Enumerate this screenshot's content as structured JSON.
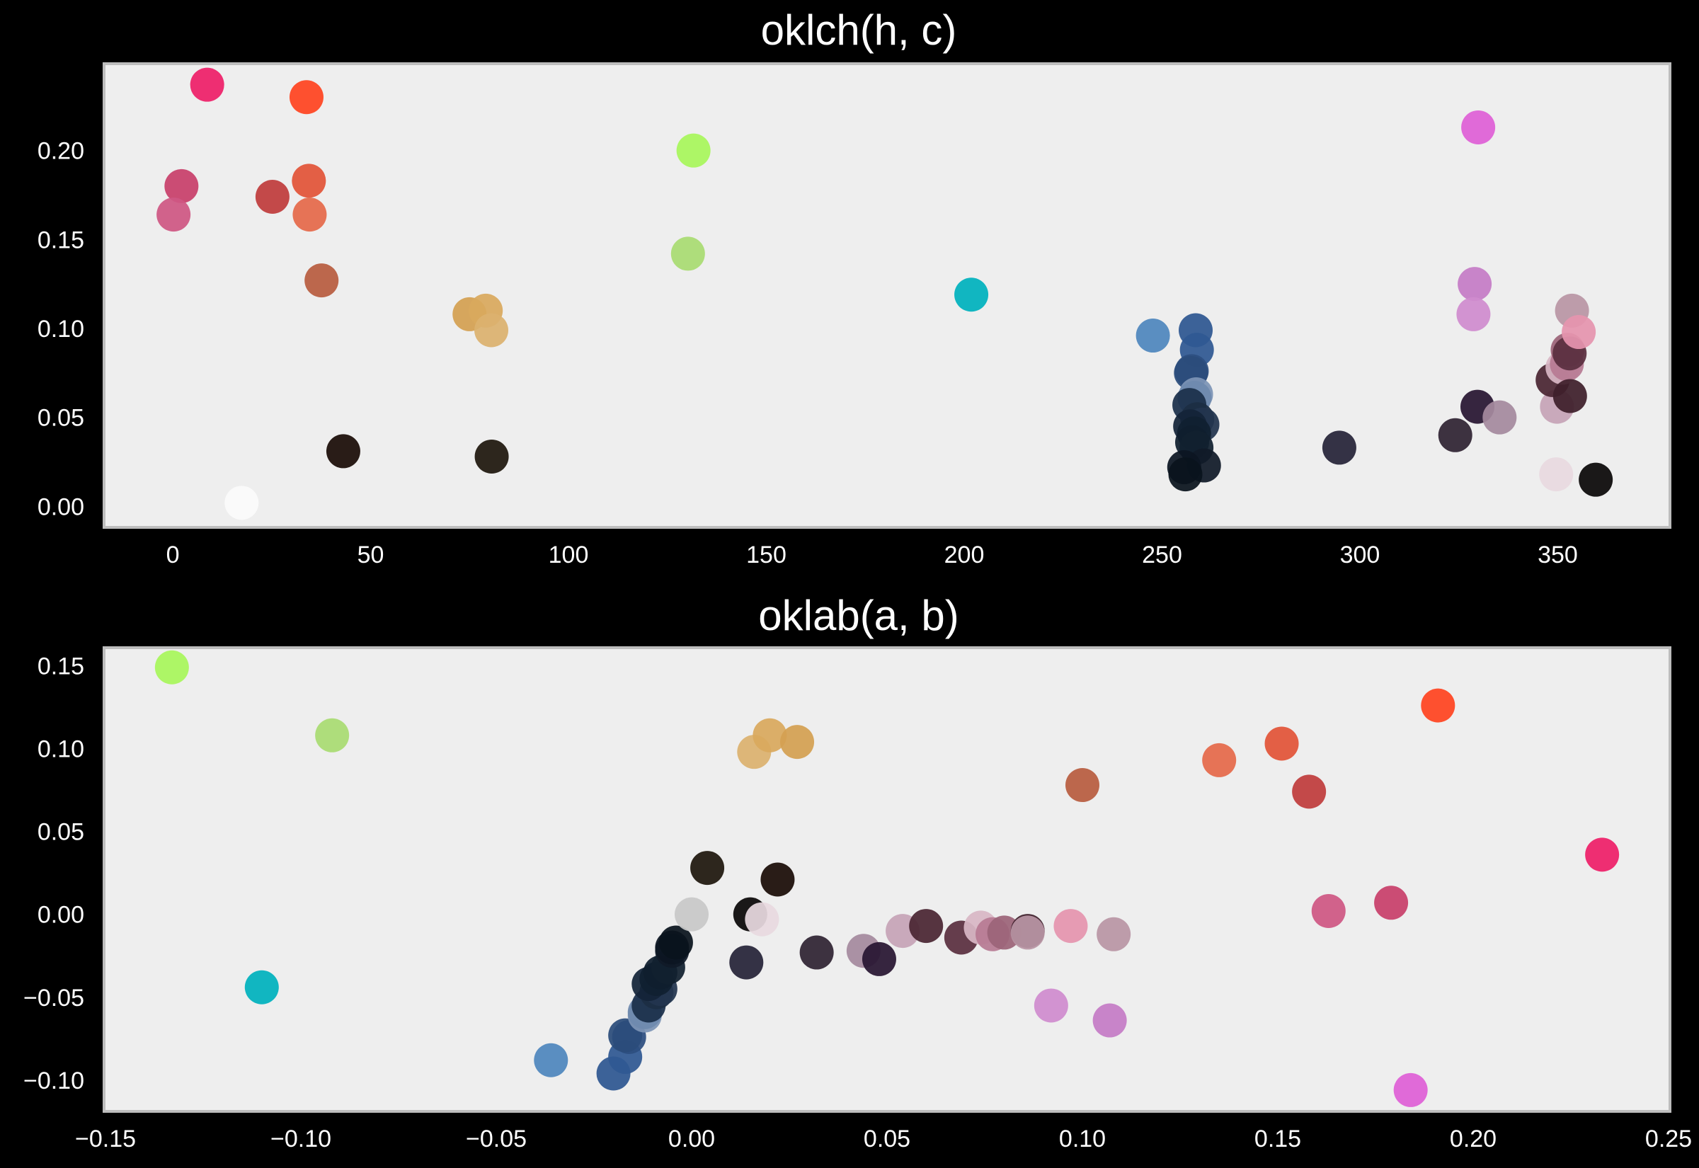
{
  "chart_data": [
    {
      "type": "scatter",
      "title": "oklch(h, c)",
      "xlim": [
        -17,
        378
      ],
      "ylim": [
        -0.011,
        0.248
      ],
      "xticks": [
        0,
        50,
        100,
        150,
        200,
        250,
        300,
        350
      ],
      "yticks": [
        0.0,
        0.05,
        0.1,
        0.15,
        0.2
      ],
      "xtick_labels": [
        "0",
        "50",
        "100",
        "150",
        "200",
        "250",
        "300",
        "350"
      ],
      "ytick_labels": [
        "0.00",
        "0.05",
        "0.10",
        "0.15",
        "0.20"
      ],
      "grid": false,
      "points": [
        {
          "x": 8.7,
          "y": 0.237,
          "color": "#ee1f68"
        },
        {
          "x": 33.8,
          "y": 0.23,
          "color": "#ff4420"
        },
        {
          "x": 2.2,
          "y": 0.18,
          "color": "#c8406a"
        },
        {
          "x": 0.2,
          "y": 0.164,
          "color": "#cf5783"
        },
        {
          "x": 25.2,
          "y": 0.174,
          "color": "#c03c3c"
        },
        {
          "x": 34.4,
          "y": 0.183,
          "color": "#e25438"
        },
        {
          "x": 34.6,
          "y": 0.164,
          "color": "#e5694a"
        },
        {
          "x": 37.6,
          "y": 0.127,
          "color": "#b85c3f"
        },
        {
          "x": 43.1,
          "y": 0.031,
          "color": "#1a0c06"
        },
        {
          "x": 17.4,
          "y": 0.002,
          "color": "#fbfbfb"
        },
        {
          "x": 75.0,
          "y": 0.108,
          "color": "#d4a052"
        },
        {
          "x": 79.1,
          "y": 0.11,
          "color": "#d9a95e"
        },
        {
          "x": 80.5,
          "y": 0.099,
          "color": "#dbb26f"
        },
        {
          "x": 80.6,
          "y": 0.028,
          "color": "#1e170d"
        },
        {
          "x": 131.6,
          "y": 0.2,
          "color": "#a8f65b"
        },
        {
          "x": 130.2,
          "y": 0.142,
          "color": "#a9db72"
        },
        {
          "x": 201.8,
          "y": 0.119,
          "color": "#00b2bd"
        },
        {
          "x": 247.7,
          "y": 0.096,
          "color": "#4f86bd"
        },
        {
          "x": 258.5,
          "y": 0.099,
          "color": "#2e5791"
        },
        {
          "x": 258.8,
          "y": 0.088,
          "color": "#2f5892"
        },
        {
          "x": 257.5,
          "y": 0.076,
          "color": "#2d4f80"
        },
        {
          "x": 257.3,
          "y": 0.075,
          "color": "#2b4c7b"
        },
        {
          "x": 258.6,
          "y": 0.063,
          "color": "#7d95b6"
        },
        {
          "x": 258.2,
          "y": 0.061,
          "color": "#6f8aae"
        },
        {
          "x": 256.9,
          "y": 0.057,
          "color": "#1b2f4a"
        },
        {
          "x": 258.9,
          "y": 0.049,
          "color": "#1c2d43"
        },
        {
          "x": 260.2,
          "y": 0.046,
          "color": "#22354f"
        },
        {
          "x": 257.1,
          "y": 0.045,
          "color": "#132438"
        },
        {
          "x": 258.1,
          "y": 0.041,
          "color": "#102030"
        },
        {
          "x": 257.6,
          "y": 0.036,
          "color": "#0f1e2e"
        },
        {
          "x": 258.7,
          "y": 0.033,
          "color": "#11202f"
        },
        {
          "x": 260.6,
          "y": 0.023,
          "color": "#101a28"
        },
        {
          "x": 255.6,
          "y": 0.022,
          "color": "#0c1622"
        },
        {
          "x": 255.9,
          "y": 0.018,
          "color": "#0a131d"
        },
        {
          "x": 294.8,
          "y": 0.033,
          "color": "#262438"
        },
        {
          "x": 324.1,
          "y": 0.04,
          "color": "#2f2333"
        },
        {
          "x": 329.9,
          "y": 0.213,
          "color": "#df60d6"
        },
        {
          "x": 329.0,
          "y": 0.125,
          "color": "#c57cc6"
        },
        {
          "x": 328.7,
          "y": 0.108,
          "color": "#d08ccf"
        },
        {
          "x": 329.7,
          "y": 0.056,
          "color": "#281531"
        },
        {
          "x": 335.3,
          "y": 0.05,
          "color": "#a58a9e"
        },
        {
          "x": 349.6,
          "y": 0.018,
          "color": "#e8d9e0"
        },
        {
          "x": 349.8,
          "y": 0.056,
          "color": "#c6a4b7"
        },
        {
          "x": 348.7,
          "y": 0.071,
          "color": "#4a2633"
        },
        {
          "x": 351.2,
          "y": 0.078,
          "color": "#d8b7c5"
        },
        {
          "x": 352.3,
          "y": 0.08,
          "color": "#b77b93"
        },
        {
          "x": 352.5,
          "y": 0.088,
          "color": "#9c6478"
        },
        {
          "x": 353.0,
          "y": 0.086,
          "color": "#5a2f3f"
        },
        {
          "x": 353.6,
          "y": 0.11,
          "color": "#b996a5"
        },
        {
          "x": 355.3,
          "y": 0.098,
          "color": "#e594ae"
        },
        {
          "x": 353.1,
          "y": 0.062,
          "color": "#3e1f2b"
        },
        {
          "x": 359.6,
          "y": 0.015,
          "color": "#0a0708"
        }
      ]
    },
    {
      "type": "scatter",
      "title": "oklab(a, b)",
      "xlim": [
        -0.15,
        0.25
      ],
      "ylim": [
        -0.118,
        0.16
      ],
      "xticks": [
        -0.15,
        -0.1,
        -0.05,
        0.0,
        0.05,
        0.1,
        0.15,
        0.2,
        0.25
      ],
      "yticks": [
        -0.1,
        -0.05,
        0.0,
        0.05,
        0.1,
        0.15
      ],
      "xtick_labels": [
        "−0.15",
        "−0.10",
        "−0.05",
        "0.00",
        "0.05",
        "0.10",
        "0.15",
        "0.20",
        "0.25"
      ],
      "ytick_labels": [
        "−0.10",
        "−0.05",
        "0.00",
        "0.05",
        "0.10",
        "0.15"
      ],
      "grid": false,
      "points": [
        {
          "x": -0.133,
          "y": 0.149,
          "color": "#a8f65b"
        },
        {
          "x": -0.092,
          "y": 0.108,
          "color": "#a9db72"
        },
        {
          "x": -0.11,
          "y": -0.044,
          "color": "#00b2bd"
        },
        {
          "x": -0.036,
          "y": -0.088,
          "color": "#4f86bd"
        },
        {
          "x": -0.02,
          "y": -0.096,
          "color": "#2e5791"
        },
        {
          "x": -0.017,
          "y": -0.086,
          "color": "#2f5892"
        },
        {
          "x": -0.016,
          "y": -0.074,
          "color": "#2d4f80"
        },
        {
          "x": -0.017,
          "y": -0.073,
          "color": "#2b4c7b"
        },
        {
          "x": -0.012,
          "y": -0.061,
          "color": "#7d95b6"
        },
        {
          "x": -0.012,
          "y": -0.059,
          "color": "#6f8aae"
        },
        {
          "x": -0.011,
          "y": -0.055,
          "color": "#1b2f4a"
        },
        {
          "x": -0.009,
          "y": -0.047,
          "color": "#1c2d43"
        },
        {
          "x": -0.008,
          "y": -0.045,
          "color": "#22354f"
        },
        {
          "x": -0.011,
          "y": -0.042,
          "color": "#132438"
        },
        {
          "x": -0.009,
          "y": -0.039,
          "color": "#102030"
        },
        {
          "x": -0.008,
          "y": -0.035,
          "color": "#0f1e2e"
        },
        {
          "x": -0.006,
          "y": -0.032,
          "color": "#11202f"
        },
        {
          "x": -0.005,
          "y": -0.022,
          "color": "#101a28"
        },
        {
          "x": -0.005,
          "y": -0.02,
          "color": "#0c1622"
        },
        {
          "x": -0.004,
          "y": -0.017,
          "color": "#0a131d"
        },
        {
          "x": 0.0,
          "y": 0.0,
          "color": "#c8c8c8"
        },
        {
          "x": 0.004,
          "y": 0.028,
          "color": "#1e170d"
        },
        {
          "x": 0.014,
          "y": -0.029,
          "color": "#262438"
        },
        {
          "x": 0.015,
          "y": 0.0,
          "color": "#0a0708"
        },
        {
          "x": 0.018,
          "y": -0.003,
          "color": "#e8d9e0"
        },
        {
          "x": 0.016,
          "y": 0.098,
          "color": "#dbb26f"
        },
        {
          "x": 0.02,
          "y": 0.108,
          "color": "#d9a95e"
        },
        {
          "x": 0.027,
          "y": 0.104,
          "color": "#d4a052"
        },
        {
          "x": 0.022,
          "y": 0.021,
          "color": "#1a0c06"
        },
        {
          "x": 0.032,
          "y": -0.023,
          "color": "#2f2333"
        },
        {
          "x": 0.044,
          "y": -0.022,
          "color": "#a58a9e"
        },
        {
          "x": 0.048,
          "y": -0.027,
          "color": "#281531"
        },
        {
          "x": 0.054,
          "y": -0.01,
          "color": "#c6a4b7"
        },
        {
          "x": 0.06,
          "y": -0.007,
          "color": "#4a2633"
        },
        {
          "x": 0.069,
          "y": -0.014,
          "color": "#5a2f3f"
        },
        {
          "x": 0.074,
          "y": -0.008,
          "color": "#d8b7c5"
        },
        {
          "x": 0.077,
          "y": -0.012,
          "color": "#b77b93"
        },
        {
          "x": 0.08,
          "y": -0.011,
          "color": "#9c6478"
        },
        {
          "x": 0.086,
          "y": -0.01,
          "color": "#3e1f2b"
        },
        {
          "x": 0.086,
          "y": -0.011,
          "color": "#b996a5"
        },
        {
          "x": 0.097,
          "y": -0.007,
          "color": "#e594ae"
        },
        {
          "x": 0.108,
          "y": -0.012,
          "color": "#b996a5"
        },
        {
          "x": 0.092,
          "y": -0.055,
          "color": "#d08ccf"
        },
        {
          "x": 0.107,
          "y": -0.064,
          "color": "#c57cc6"
        },
        {
          "x": 0.1,
          "y": 0.078,
          "color": "#b85c3f"
        },
        {
          "x": 0.135,
          "y": 0.093,
          "color": "#e5694a"
        },
        {
          "x": 0.151,
          "y": 0.103,
          "color": "#e25438"
        },
        {
          "x": 0.158,
          "y": 0.074,
          "color": "#c03c3c"
        },
        {
          "x": 0.163,
          "y": 0.002,
          "color": "#cf5783"
        },
        {
          "x": 0.179,
          "y": 0.007,
          "color": "#c8406a"
        },
        {
          "x": 0.191,
          "y": 0.126,
          "color": "#ff4420"
        },
        {
          "x": 0.184,
          "y": -0.106,
          "color": "#df60d6"
        },
        {
          "x": 0.233,
          "y": 0.036,
          "color": "#ee1f68"
        }
      ]
    }
  ]
}
